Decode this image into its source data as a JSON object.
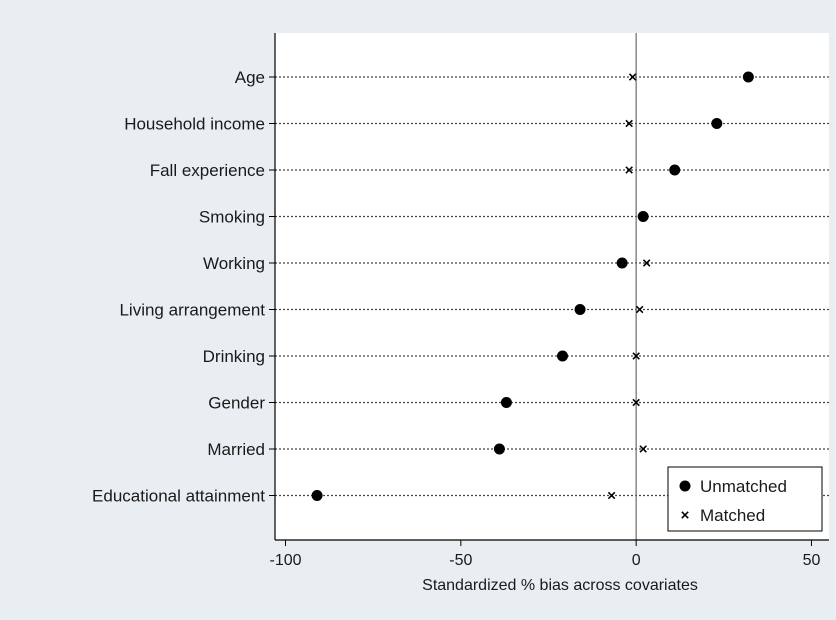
{
  "chart_data": {
    "type": "scatter",
    "xlabel": "Standardized % bias across covariates",
    "xlim": [
      -103,
      55
    ],
    "xticks": [
      -100,
      -50,
      0,
      50
    ],
    "zero_line": 0,
    "legend_position": "bottom-right",
    "categories": [
      "Age",
      "Household income",
      "Fall experience",
      "Smoking",
      "Working",
      "Living arrangement",
      "Drinking",
      "Gender",
      "Married",
      "Educational attainment"
    ],
    "series": [
      {
        "name": "Unmatched",
        "marker": "circle",
        "values": [
          32,
          23,
          11,
          2,
          -4,
          -16,
          -21,
          -37,
          -39,
          -91
        ]
      },
      {
        "name": "Matched",
        "marker": "x",
        "values": [
          -1,
          -2,
          -2,
          2,
          3,
          1,
          0,
          0,
          2,
          -7
        ]
      }
    ],
    "colors": {
      "marker": "#000000",
      "plot_background": "#ffffff",
      "outer_background": "#e9eef2",
      "frame": "#000000"
    }
  }
}
